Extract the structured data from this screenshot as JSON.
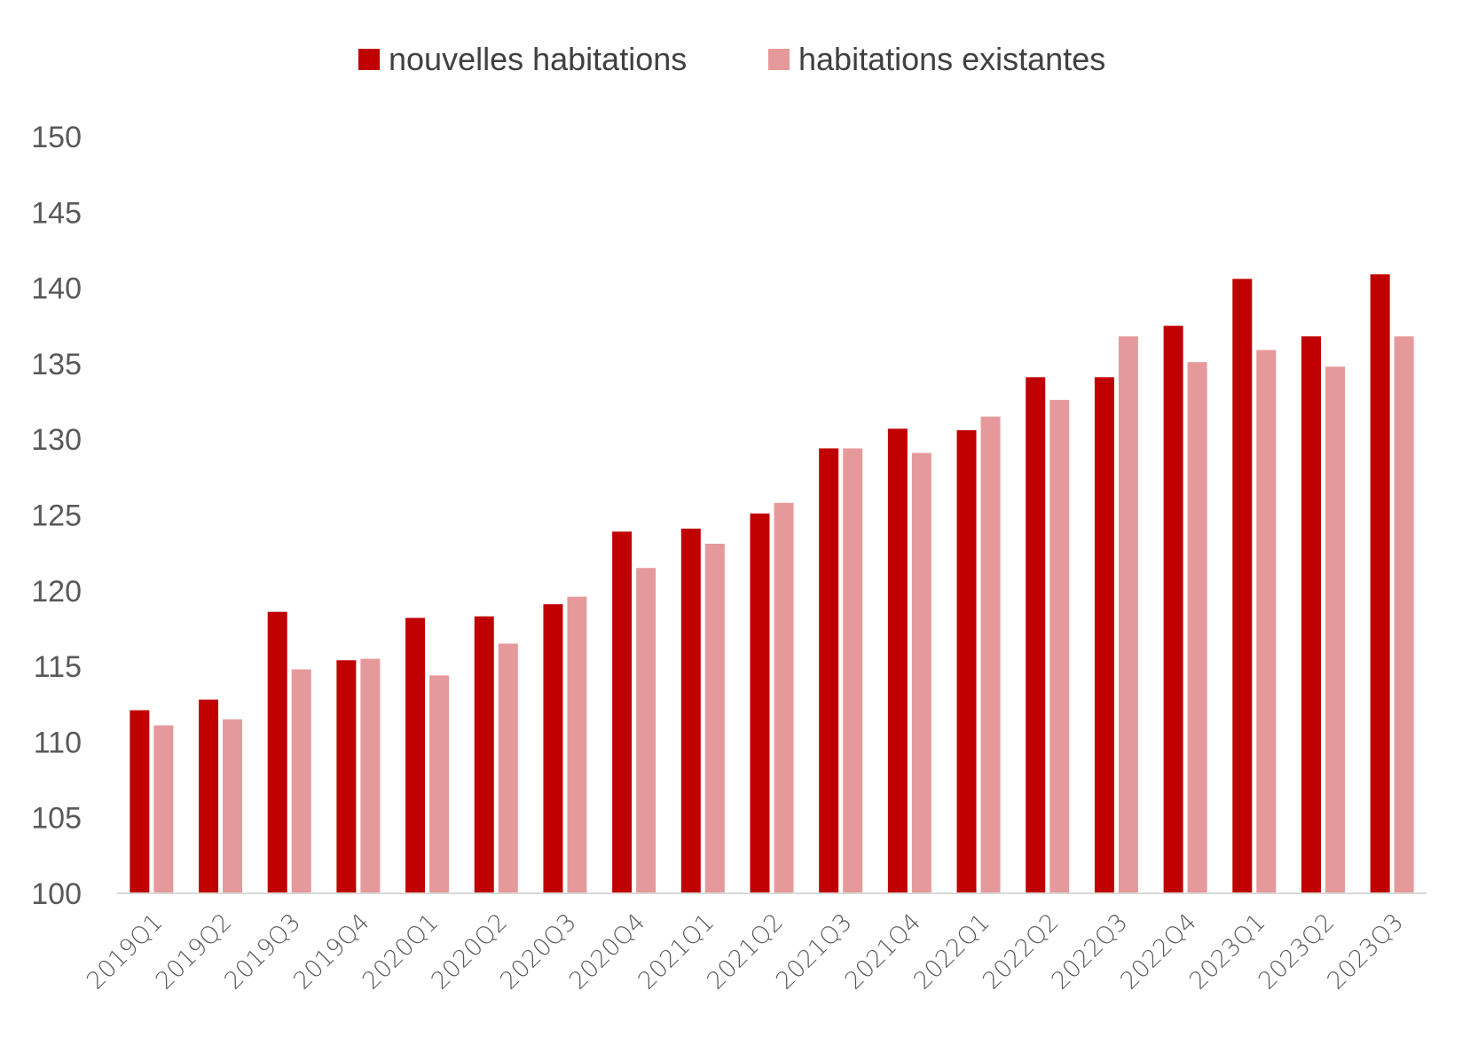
{
  "chart_data": {
    "type": "bar",
    "title": "",
    "xlabel": "",
    "ylabel": "",
    "ylim": [
      100,
      150
    ],
    "y_ticks": [
      100,
      105,
      110,
      115,
      120,
      125,
      130,
      135,
      140,
      145,
      150
    ],
    "grid": false,
    "legend_position": "top-center",
    "categories": [
      "2019Q1",
      "2019Q2",
      "2019Q3",
      "2019Q4",
      "2020Q1",
      "2020Q2",
      "2020Q3",
      "2020Q4",
      "2021Q1",
      "2021Q2",
      "2021Q3",
      "2021Q4",
      "2022Q1",
      "2022Q2",
      "2022Q3",
      "2022Q4",
      "2023Q1",
      "2023Q2",
      "2023Q3"
    ],
    "series": [
      {
        "name": "nouvelles habitations",
        "color": "#c00000",
        "values": [
          112.1,
          112.8,
          118.6,
          115.4,
          118.2,
          118.3,
          119.1,
          123.9,
          124.1,
          125.1,
          129.4,
          130.7,
          130.6,
          134.1,
          134.1,
          137.5,
          140.6,
          136.8,
          140.9
        ]
      },
      {
        "name": "habitations existantes",
        "color": "#e6999b",
        "values": [
          111.1,
          111.5,
          114.8,
          115.5,
          114.4,
          116.5,
          119.6,
          121.5,
          123.1,
          125.8,
          129.4,
          129.1,
          131.5,
          132.6,
          136.8,
          135.1,
          135.9,
          134.8,
          136.8
        ]
      }
    ]
  }
}
